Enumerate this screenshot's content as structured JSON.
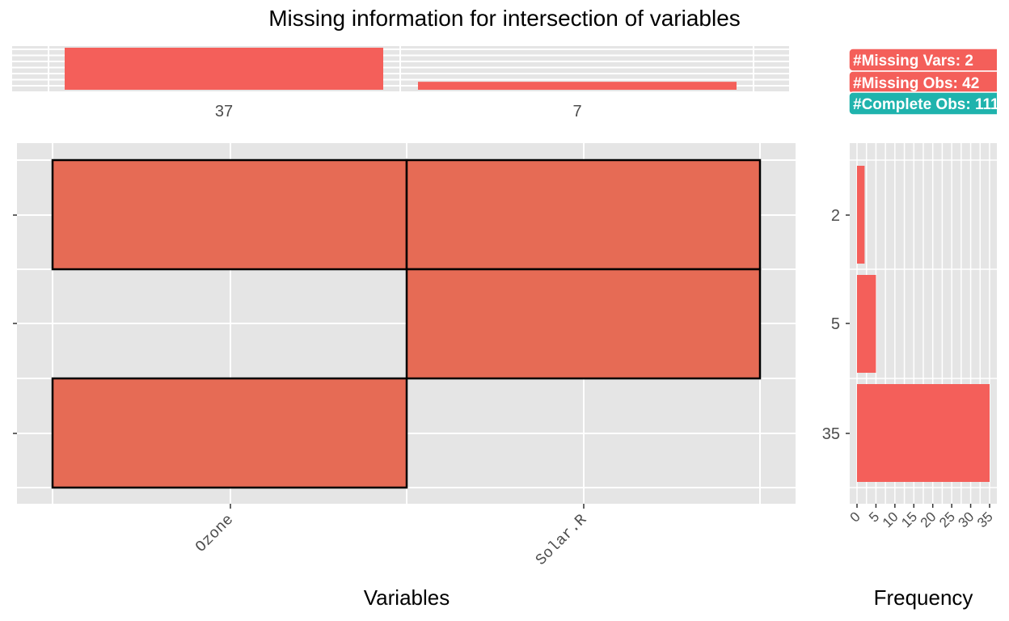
{
  "title": "Missing information for intersection of variables",
  "colors": {
    "bar": "#f45f5a",
    "tile_missing": "#e66b55",
    "panel_bg": "#e5e5e5",
    "grid": "#ffffff",
    "complete": "#1fb3ad",
    "text": "#4d4d4d"
  },
  "chart_data": [
    {
      "type": "bar",
      "panel": "top",
      "categories": [
        "Ozone",
        "Solar.R"
      ],
      "values": [
        37,
        7
      ],
      "labels": [
        "37",
        "7"
      ],
      "ylim": [
        0,
        37
      ]
    },
    {
      "type": "heatmap",
      "panel": "main",
      "xlabel": "Variables",
      "x_categories": [
        "Ozone",
        "Solar.R"
      ],
      "rows": [
        {
          "label": "2",
          "missing": [
            true,
            true
          ]
        },
        {
          "label": "5",
          "missing": [
            false,
            true
          ]
        },
        {
          "label": "35",
          "missing": [
            true,
            false
          ]
        }
      ],
      "grid": true
    },
    {
      "type": "bar",
      "panel": "right",
      "orientation": "horizontal",
      "xlabel": "Frequency",
      "categories": [
        "2",
        "5",
        "35"
      ],
      "values": [
        2,
        5,
        35
      ],
      "xticks": [
        "0",
        "5",
        "10",
        "15",
        "20",
        "25",
        "30",
        "35"
      ],
      "xlim": [
        0,
        35
      ]
    }
  ],
  "legend_badges": [
    {
      "text": "#Missing Vars: 2",
      "kind": "missing"
    },
    {
      "text": "#Missing Obs: 42",
      "kind": "missing"
    },
    {
      "text": "#Complete Obs: 111",
      "kind": "complete"
    }
  ]
}
